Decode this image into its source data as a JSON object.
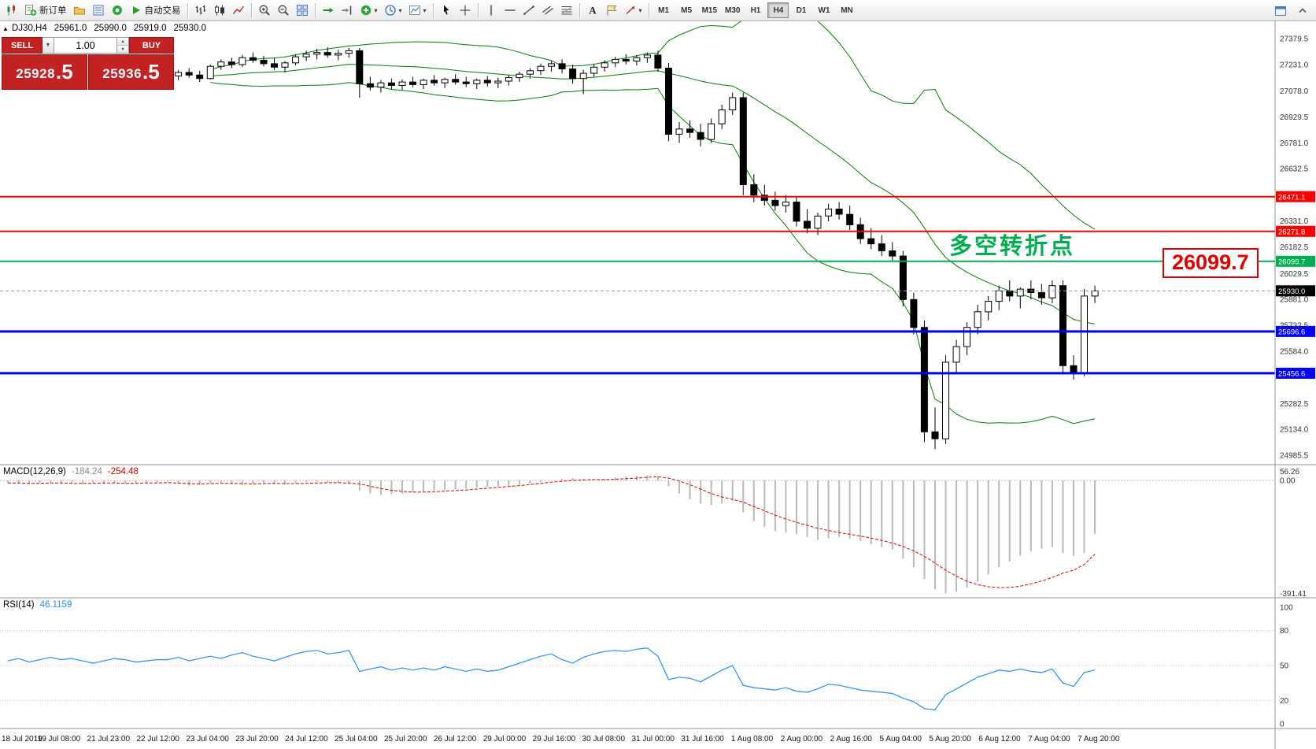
{
  "colors": {
    "trade_red": "#c32222",
    "bollinger": "#008000",
    "rsi_line": "#1E90FF",
    "macd_histogram": "#b9b9b9",
    "macd_signal": "#e00000",
    "annotation_green": "#00b050",
    "callout_red": "#e00000"
  },
  "toolbar": {
    "groups": [
      {
        "items": [
          {
            "name": "new-chart",
            "icon": "candle-plus-icon"
          },
          {
            "name": "new-order",
            "icon": "new-order-icon",
            "label": "新订单"
          },
          {
            "name": "profiles",
            "icon": "profiles-icon"
          },
          {
            "name": "market-watch",
            "icon": "market-watch-icon"
          },
          {
            "name": "strategy-tester",
            "icon": "tester-icon"
          },
          {
            "name": "auto-trading",
            "icon": "autotrade-icon",
            "label": "自动交易"
          }
        ]
      },
      {
        "items": [
          {
            "name": "bar-chart",
            "icon": "bars-icon"
          },
          {
            "name": "candlestick-chart",
            "icon": "candles-icon"
          },
          {
            "name": "line-chart",
            "icon": "line-chart-icon"
          }
        ]
      },
      {
        "items": [
          {
            "name": "zoom-in",
            "icon": "zoom-in-icon"
          },
          {
            "name": "zoom-out",
            "icon": "zoom-out-icon"
          },
          {
            "name": "tile-windows",
            "icon": "tile-icon"
          }
        ]
      },
      {
        "items": [
          {
            "name": "auto-scroll",
            "icon": "auto-scroll-icon"
          },
          {
            "name": "chart-shift",
            "icon": "chart-shift-icon"
          },
          {
            "name": "indicators",
            "icon": "add-indicator-icon",
            "dropdown": true
          },
          {
            "name": "periods",
            "icon": "clock-icon",
            "dropdown": true
          },
          {
            "name": "templates",
            "icon": "template-icon",
            "dropdown": true
          }
        ]
      },
      {
        "items": [
          {
            "name": "cursor",
            "icon": "cursor-icon"
          },
          {
            "name": "crosshair",
            "icon": "crosshair-icon"
          }
        ]
      },
      {
        "items": [
          {
            "name": "vertical-line",
            "icon": "vline-icon"
          },
          {
            "name": "horizontal-line",
            "icon": "hline-icon"
          },
          {
            "name": "trend-line",
            "icon": "tline-icon"
          },
          {
            "name": "equidistant-channel",
            "icon": "channel-icon"
          },
          {
            "name": "fibonacci-retracement",
            "icon": "fibo-icon"
          }
        ]
      },
      {
        "items": [
          {
            "name": "text",
            "icon": "text-icon"
          },
          {
            "name": "text-label",
            "icon": "label-icon"
          },
          {
            "name": "arrows",
            "icon": "arrow-tool-icon",
            "dropdown": true
          }
        ]
      }
    ],
    "timeframes": [
      "M1",
      "M5",
      "M15",
      "M30",
      "H1",
      "H4",
      "D1",
      "W1",
      "MN"
    ],
    "active_timeframe": "H4",
    "right_icons": [
      {
        "name": "chart-window",
        "icon": "window-icon"
      },
      {
        "name": "toolbar-expand",
        "icon": "chevron-icon"
      }
    ]
  },
  "chart_header": {
    "symbol": "DJ30,H4",
    "open": "25961.0",
    "high": "25990.0",
    "low": "25919.0",
    "close": "25930.0"
  },
  "trade_panel": {
    "sell_label": "SELL",
    "buy_label": "BUY",
    "volume": "1.00",
    "sell_price": "25928",
    "sell_price_frac": ".5",
    "buy_price": "25936",
    "buy_price_frac": ".5"
  },
  "annotation": {
    "text": "多空转折点",
    "color": "#00b050"
  },
  "callout": {
    "text": "26099.7",
    "color": "#e00000"
  },
  "main_chart": {
    "y_axis_labels": [
      "27379.5",
      "27231.0",
      "27078.0",
      "26929.5",
      "26781.0",
      "26632.5",
      "26331.0",
      "26182.5",
      "26029.5",
      "25881.0",
      "25732.5",
      "25584.0",
      "25282.5",
      "25134.0",
      "24985.5"
    ],
    "levels": [
      {
        "price": 26471.1,
        "label": "26471.1",
        "color": "#ff0000",
        "thick": false
      },
      {
        "price": 26271.8,
        "label": "26271.8",
        "color": "#ff0000",
        "thick": false
      },
      {
        "price": 26099.7,
        "label": "26099.7",
        "color": "#00b050",
        "thick": false
      },
      {
        "price": 25696.6,
        "label": "25696.6",
        "color": "#0000ff",
        "thick": true
      },
      {
        "price": 25456.6,
        "label": "25456.6",
        "color": "#0000ff",
        "thick": true
      }
    ],
    "current_price": {
      "value": 25930.0,
      "label": "25930.0"
    }
  },
  "chart_data": {
    "type": "candlestick",
    "title": "DJ30 H4",
    "price_range": [
      24985.5,
      27379.5
    ],
    "x_labels": [
      "18 Jul 2019",
      "19 Jul 08:00",
      "21 Jul 23:00",
      "22 Jul 12:00",
      "23 Jul 04:00",
      "23 Jul 20:00",
      "24 Jul 12:00",
      "25 Jul 04:00",
      "25 Jul 20:00",
      "26 Jul 12:00",
      "29 Jul 00:00",
      "29 Jul 16:00",
      "30 Jul 08:00",
      "31 Jul 00:00",
      "31 Jul 16:00",
      "1 Aug 08:00",
      "2 Aug 00:00",
      "2 Aug 16:00",
      "5 Aug 04:00",
      "5 Aug 20:00",
      "6 Aug 12:00",
      "7 Aug 04:00",
      "7 Aug 20:00"
    ],
    "ohlc": [
      [
        27130,
        27170,
        27100,
        27150
      ],
      [
        27150,
        27185,
        27120,
        27160
      ],
      [
        27160,
        27190,
        27130,
        27145
      ],
      [
        27145,
        27180,
        27115,
        27170
      ],
      [
        27170,
        27205,
        27140,
        27185
      ],
      [
        27185,
        27215,
        27150,
        27165
      ],
      [
        27165,
        27195,
        27135,
        27180
      ],
      [
        27180,
        27210,
        27145,
        27155
      ],
      [
        27155,
        27185,
        27125,
        27140
      ],
      [
        27140,
        27175,
        27110,
        27160
      ],
      [
        27160,
        27195,
        27130,
        27175
      ],
      [
        27175,
        27205,
        27145,
        27160
      ],
      [
        27160,
        27190,
        27125,
        27145
      ],
      [
        27145,
        27175,
        27115,
        27155
      ],
      [
        27155,
        27190,
        27125,
        27150
      ],
      [
        27150,
        27180,
        27120,
        27165
      ],
      [
        27165,
        27200,
        27140,
        27185
      ],
      [
        27185,
        27210,
        27155,
        27170
      ],
      [
        27170,
        27195,
        27130,
        27150
      ],
      [
        27150,
        27230,
        27145,
        27220
      ],
      [
        27220,
        27260,
        27200,
        27245
      ],
      [
        27245,
        27270,
        27210,
        27230
      ],
      [
        27230,
        27285,
        27215,
        27270
      ],
      [
        27270,
        27300,
        27240,
        27255
      ],
      [
        27255,
        27280,
        27220,
        27235
      ],
      [
        27235,
        27270,
        27200,
        27215
      ],
      [
        27215,
        27250,
        27185,
        27240
      ],
      [
        27240,
        27290,
        27225,
        27275
      ],
      [
        27275,
        27310,
        27250,
        27290
      ],
      [
        27290,
        27320,
        27260,
        27300
      ],
      [
        27300,
        27330,
        27270,
        27285
      ],
      [
        27285,
        27315,
        27255,
        27295
      ],
      [
        27295,
        27325,
        27270,
        27310
      ],
      [
        27310,
        27325,
        27040,
        27120
      ],
      [
        27120,
        27160,
        27080,
        27100
      ],
      [
        27100,
        27140,
        27070,
        27125
      ],
      [
        27125,
        27150,
        27090,
        27110
      ],
      [
        27110,
        27145,
        27085,
        27130
      ],
      [
        27130,
        27160,
        27100,
        27115
      ],
      [
        27115,
        27150,
        27090,
        27140
      ],
      [
        27140,
        27170,
        27110,
        27125
      ],
      [
        27125,
        27155,
        27095,
        27145
      ],
      [
        27145,
        27175,
        27115,
        27130
      ],
      [
        27130,
        27160,
        27100,
        27120
      ],
      [
        27120,
        27150,
        27090,
        27140
      ],
      [
        27140,
        27165,
        27105,
        27125
      ],
      [
        27125,
        27155,
        27095,
        27135
      ],
      [
        27135,
        27170,
        27110,
        27155
      ],
      [
        27155,
        27190,
        27130,
        27175
      ],
      [
        27175,
        27210,
        27150,
        27195
      ],
      [
        27195,
        27235,
        27170,
        27220
      ],
      [
        27220,
        27250,
        27190,
        27235
      ],
      [
        27235,
        27260,
        27180,
        27205
      ],
      [
        27205,
        27230,
        27120,
        27150
      ],
      [
        27150,
        27200,
        27060,
        27180
      ],
      [
        27180,
        27230,
        27160,
        27215
      ],
      [
        27215,
        27255,
        27190,
        27240
      ],
      [
        27240,
        27275,
        27215,
        27260
      ],
      [
        27260,
        27290,
        27230,
        27250
      ],
      [
        27250,
        27285,
        27225,
        27270
      ],
      [
        27270,
        27300,
        27240,
        27285
      ],
      [
        27285,
        27310,
        27190,
        27210
      ],
      [
        27210,
        27240,
        26790,
        26830
      ],
      [
        26830,
        26900,
        26780,
        26860
      ],
      [
        26860,
        26910,
        26810,
        26840
      ],
      [
        26840,
        26890,
        26760,
        26800
      ],
      [
        26800,
        26920,
        26780,
        26890
      ],
      [
        26890,
        27000,
        26860,
        26970
      ],
      [
        26970,
        27070,
        26940,
        27040
      ],
      [
        27040,
        27070,
        26480,
        26540
      ],
      [
        26540,
        26600,
        26440,
        26480
      ],
      [
        26480,
        26540,
        26420,
        26450
      ],
      [
        26450,
        26500,
        26390,
        26420
      ],
      [
        26420,
        26480,
        26380,
        26440
      ],
      [
        26440,
        26470,
        26300,
        26330
      ],
      [
        26330,
        26400,
        26260,
        26290
      ],
      [
        26290,
        26380,
        26250,
        26360
      ],
      [
        26360,
        26430,
        26330,
        26400
      ],
      [
        26400,
        26440,
        26340,
        26370
      ],
      [
        26370,
        26420,
        26280,
        26310
      ],
      [
        26310,
        26350,
        26200,
        26230
      ],
      [
        26230,
        26290,
        26170,
        26200
      ],
      [
        26200,
        26250,
        26130,
        26160
      ],
      [
        26160,
        26210,
        26100,
        26130
      ],
      [
        26130,
        26160,
        25840,
        25880
      ],
      [
        25880,
        25920,
        25680,
        25720
      ],
      [
        25720,
        25760,
        25060,
        25120
      ],
      [
        25120,
        25260,
        25020,
        25080
      ],
      [
        25080,
        25560,
        25050,
        25520
      ],
      [
        25520,
        25650,
        25460,
        25610
      ],
      [
        25610,
        25750,
        25560,
        25720
      ],
      [
        25720,
        25850,
        25680,
        25810
      ],
      [
        25810,
        25900,
        25760,
        25870
      ],
      [
        25870,
        25960,
        25820,
        25930
      ],
      [
        25930,
        25990,
        25870,
        25900
      ],
      [
        25900,
        25950,
        25830,
        25940
      ],
      [
        25940,
        25990,
        25880,
        25920
      ],
      [
        25920,
        25970,
        25850,
        25890
      ],
      [
        25890,
        25990,
        25860,
        25960
      ],
      [
        25960,
        25990,
        25450,
        25500
      ],
      [
        25500,
        25560,
        25420,
        25460
      ],
      [
        25460,
        25940,
        25440,
        25900
      ],
      [
        25900,
        25960,
        25860,
        25930
      ]
    ],
    "indicators": {
      "bollinger": {
        "period": 20,
        "deviation": 2,
        "color": "#008000"
      },
      "macd": {
        "label": "MACD(12,26,9)",
        "main_value": "-184.24",
        "signal_value": "-254.48",
        "scale": {
          "max": "56.26",
          "zero": "0.00",
          "min": "-391.41"
        },
        "histogram": [
          -8,
          -10,
          -12,
          -9,
          -7,
          -9,
          -11,
          -13,
          -10,
          -8,
          -9,
          -11,
          -10,
          -8,
          -7,
          -5,
          -12,
          -18,
          -15,
          -10,
          -8,
          -12,
          -16,
          -12,
          -8,
          -10,
          -14,
          -10,
          -6,
          -4,
          -6,
          -8,
          -10,
          -35,
          -45,
          -50,
          -48,
          -45,
          -40,
          -38,
          -35,
          -32,
          -30,
          -28,
          -25,
          -22,
          -20,
          -18,
          -15,
          -10,
          -5,
          0,
          5,
          8,
          5,
          0,
          5,
          10,
          14,
          16,
          18,
          15,
          -20,
          -45,
          -65,
          -80,
          -85,
          -80,
          -70,
          -110,
          -140,
          -160,
          -175,
          -180,
          -185,
          -195,
          -205,
          -200,
          -195,
          -200,
          -210,
          -220,
          -230,
          -240,
          -270,
          -300,
          -340,
          -375,
          -390,
          -385,
          -370,
          -350,
          -325,
          -300,
          -280,
          -260,
          -245,
          -235,
          -230,
          -250,
          -260,
          -250,
          -184.24
        ],
        "signal": [
          -9,
          -9,
          -10,
          -10,
          -9,
          -9,
          -10,
          -10,
          -10,
          -9,
          -9,
          -10,
          -10,
          -9,
          -9,
          -8,
          -9,
          -11,
          -12,
          -11,
          -10,
          -10,
          -11,
          -12,
          -11,
          -10,
          -11,
          -11,
          -10,
          -9,
          -8,
          -8,
          -9,
          -12,
          -20,
          -28,
          -34,
          -38,
          -40,
          -40,
          -39,
          -37,
          -35,
          -33,
          -30,
          -27,
          -24,
          -21,
          -18,
          -14,
          -10,
          -6,
          -3,
          0,
          2,
          3,
          3,
          4,
          6,
          8,
          11,
          13,
          8,
          -2,
          -15,
          -30,
          -45,
          -57,
          -65,
          -75,
          -90,
          -105,
          -120,
          -133,
          -145,
          -155,
          -165,
          -173,
          -180,
          -186,
          -192,
          -199,
          -207,
          -216,
          -228,
          -243,
          -262,
          -285,
          -310,
          -330,
          -348,
          -360,
          -367,
          -370,
          -369,
          -365,
          -357,
          -347,
          -335,
          -320,
          -310,
          -290,
          -254.48
        ]
      },
      "rsi": {
        "label": "RSI(14)",
        "value": "46.1159",
        "levels": [
          80,
          50,
          20
        ],
        "scale": [
          {
            "v": 100,
            "label": "100"
          },
          {
            "v": 80,
            "label": "80"
          },
          {
            "v": 50,
            "label": "50"
          },
          {
            "v": 20,
            "label": "20"
          },
          {
            "v": 0,
            "label": "0"
          }
        ],
        "values": [
          54,
          56,
          53,
          55,
          57,
          55,
          56,
          54,
          52,
          54,
          56,
          55,
          53,
          54,
          55,
          55,
          57,
          54,
          56,
          58,
          56,
          59,
          61,
          58,
          56,
          54,
          57,
          60,
          62,
          63,
          60,
          61,
          63,
          45,
          47,
          49,
          46,
          48,
          46,
          48,
          46,
          49,
          47,
          45,
          47,
          45,
          46,
          49,
          52,
          55,
          58,
          60,
          55,
          52,
          57,
          60,
          62,
          63,
          62,
          64,
          65,
          58,
          38,
          40,
          39,
          36,
          41,
          46,
          50,
          33,
          31,
          30,
          29,
          31,
          28,
          27,
          30,
          34,
          33,
          31,
          29,
          28,
          27,
          26,
          22,
          19,
          13,
          12,
          25,
          30,
          35,
          40,
          43,
          46,
          45,
          47,
          45,
          44,
          47,
          35,
          32,
          44,
          46.1159
        ]
      }
    }
  }
}
